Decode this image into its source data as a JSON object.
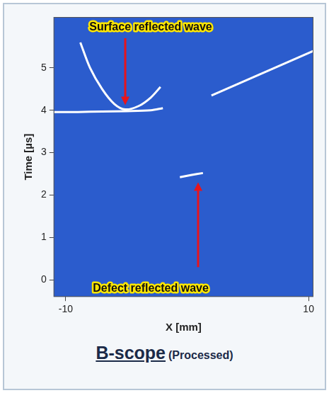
{
  "chart_data": {
    "type": "line",
    "title": "B-scope",
    "subtitle": "(Processed)",
    "x_label": "X [mm]",
    "y_label": "Time [µs]",
    "xlim": [
      -11,
      10.4
    ],
    "ylim": [
      -0.4,
      6.2
    ],
    "xticks": [
      -10,
      10
    ],
    "yticks": [
      0,
      1,
      2,
      3,
      4,
      5
    ],
    "grid": false,
    "series": [
      {
        "color": "#ffffff",
        "x": [
          -11,
          -9,
          -7,
          -5,
          -3,
          -2
        ],
        "values": [
          3.96,
          3.96,
          3.97,
          3.98,
          4.0,
          4.05
        ]
      },
      {
        "color": "#ffffff",
        "x": [
          -8.8,
          -8,
          -7,
          -6,
          -5.1,
          -4,
          -3,
          -2.2
        ],
        "values": [
          5.6,
          5.0,
          4.5,
          4.15,
          4.02,
          4.1,
          4.3,
          4.55
        ]
      },
      {
        "color": "#ffffff",
        "x": [
          2.0,
          4,
          6,
          8,
          10.4
        ],
        "values": [
          4.35,
          4.6,
          4.85,
          5.1,
          5.4
        ]
      },
      {
        "color": "#ffffff",
        "x": [
          -0.6,
          0.3,
          1.3
        ],
        "values": [
          2.42,
          2.47,
          2.52
        ]
      }
    ],
    "annotations": [
      {
        "text": "Surface reflected wave",
        "at": [
          -3.0,
          5.95
        ],
        "arrow_from": [
          -5.1,
          5.7
        ],
        "arrow_to": [
          -5.1,
          4.12
        ]
      },
      {
        "text": "Defect reflected wave",
        "at": [
          -3.0,
          -0.2
        ],
        "arrow_from": [
          0.9,
          0.3
        ],
        "arrow_to": [
          0.9,
          2.3
        ]
      }
    ]
  }
}
